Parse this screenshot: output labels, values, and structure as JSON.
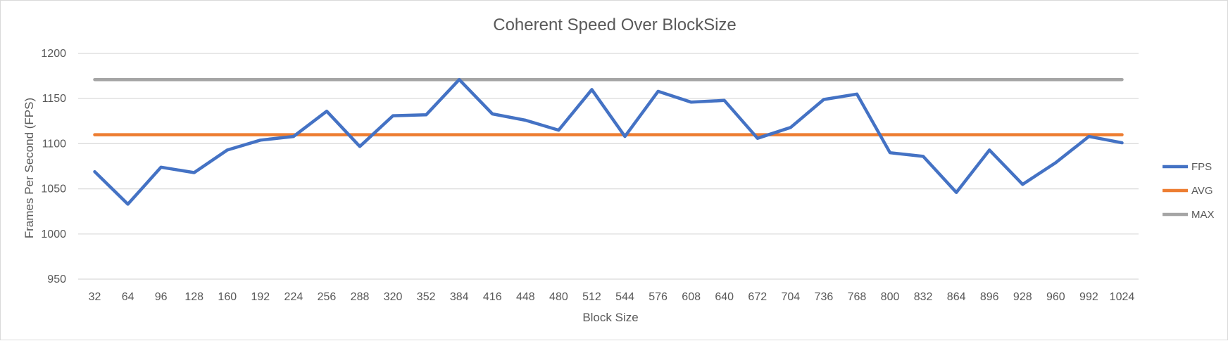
{
  "chart_data": {
    "type": "line",
    "title": "Coherent Speed Over BlockSize",
    "xlabel": "Block Size",
    "ylabel": "Frames Per Second (FPS)",
    "ylim": [
      950,
      1200
    ],
    "yticks": [
      950,
      1000,
      1050,
      1100,
      1150,
      1200
    ],
    "grid": true,
    "legend_position": "right",
    "categories": [
      "32",
      "64",
      "96",
      "128",
      "160",
      "192",
      "224",
      "256",
      "288",
      "320",
      "352",
      "384",
      "416",
      "448",
      "480",
      "512",
      "544",
      "576",
      "608",
      "640",
      "672",
      "704",
      "736",
      "768",
      "800",
      "832",
      "864",
      "896",
      "928",
      "960",
      "992",
      "1024"
    ],
    "series": [
      {
        "name": "FPS",
        "color": "#4472C4",
        "values": [
          1069,
          1033,
          1074,
          1068,
          1093,
          1104,
          1108,
          1136,
          1097,
          1131,
          1132,
          1171,
          1133,
          1126,
          1115,
          1160,
          1108,
          1158,
          1146,
          1148,
          1106,
          1118,
          1149,
          1155,
          1090,
          1086,
          1046,
          1093,
          1055,
          1079,
          1108,
          1101
        ]
      },
      {
        "name": "AVG",
        "color": "#ED7D31",
        "values": [
          1110,
          1110,
          1110,
          1110,
          1110,
          1110,
          1110,
          1110,
          1110,
          1110,
          1110,
          1110,
          1110,
          1110,
          1110,
          1110,
          1110,
          1110,
          1110,
          1110,
          1110,
          1110,
          1110,
          1110,
          1110,
          1110,
          1110,
          1110,
          1110,
          1110,
          1110,
          1110
        ]
      },
      {
        "name": "MAX",
        "color": "#A5A5A5",
        "values": [
          1171,
          1171,
          1171,
          1171,
          1171,
          1171,
          1171,
          1171,
          1171,
          1171,
          1171,
          1171,
          1171,
          1171,
          1171,
          1171,
          1171,
          1171,
          1171,
          1171,
          1171,
          1171,
          1171,
          1171,
          1171,
          1171,
          1171,
          1171,
          1171,
          1171,
          1171,
          1171
        ]
      }
    ]
  }
}
